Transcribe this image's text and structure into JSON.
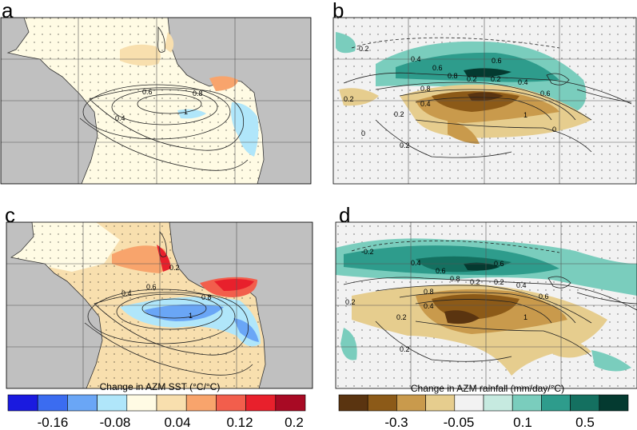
{
  "chart_data": [
    {
      "type": "heatmap",
      "panel": "a",
      "field": "Change in AZM SST (°C/°C)",
      "contour_labels": [
        "0.4",
        "0.6",
        "0.8",
        "1"
      ]
    },
    {
      "type": "heatmap",
      "panel": "b",
      "field": "Change in AZM rainfall (mm/day/°C)",
      "contour_labels": [
        "-0.2",
        "0.4",
        "0.6",
        "0.8",
        "0.2",
        "0.2",
        "0.6",
        "0.4",
        "0.8",
        "0.6",
        "1",
        "0.2",
        "0.2",
        "0.4",
        "0",
        "0",
        "0.2"
      ]
    },
    {
      "type": "heatmap",
      "panel": "c",
      "field": "Change in AZM SST (°C/°C)",
      "contour_labels": [
        "0.2",
        "0.4",
        "0.6",
        "0.8",
        "1"
      ]
    },
    {
      "type": "heatmap",
      "panel": "d",
      "field": "Change in AZM rainfall (mm/day/°C)",
      "contour_labels": [
        "-0.2",
        "0.4",
        "0.6",
        "0.8",
        "0.2",
        "0.2",
        "0.6",
        "0.4",
        "0.8",
        "0.6",
        "1",
        "0.2",
        "0.2",
        "0.4",
        "0.2"
      ]
    }
  ],
  "panels": {
    "a": "a",
    "b": "b",
    "c": "c",
    "d": "d"
  },
  "colorbars": {
    "sst": {
      "title": "Change in AZM SST (°C/°C)",
      "ticks": [
        "-0.16",
        "-0.08",
        "0.04",
        "0.12",
        "0.2"
      ],
      "colors": [
        "#1a1adf",
        "#3b6cf0",
        "#6aa6f6",
        "#b0e6fa",
        "#fffbe4",
        "#f8dfae",
        "#f8a46c",
        "#f25e4c",
        "#e8202c",
        "#a80a24"
      ]
    },
    "rain": {
      "title": "Change in AZM rainfall (mm/day/°C)",
      "ticks": [
        "-0.3",
        "-0.05",
        "0.1",
        "0.5"
      ],
      "colors": [
        "#5a3410",
        "#8c5a18",
        "#c99a4c",
        "#e6cd8e",
        "#f2f2f2",
        "#c6eae0",
        "#7acdbd",
        "#2e9c8c",
        "#147060",
        "#043a30"
      ]
    }
  }
}
